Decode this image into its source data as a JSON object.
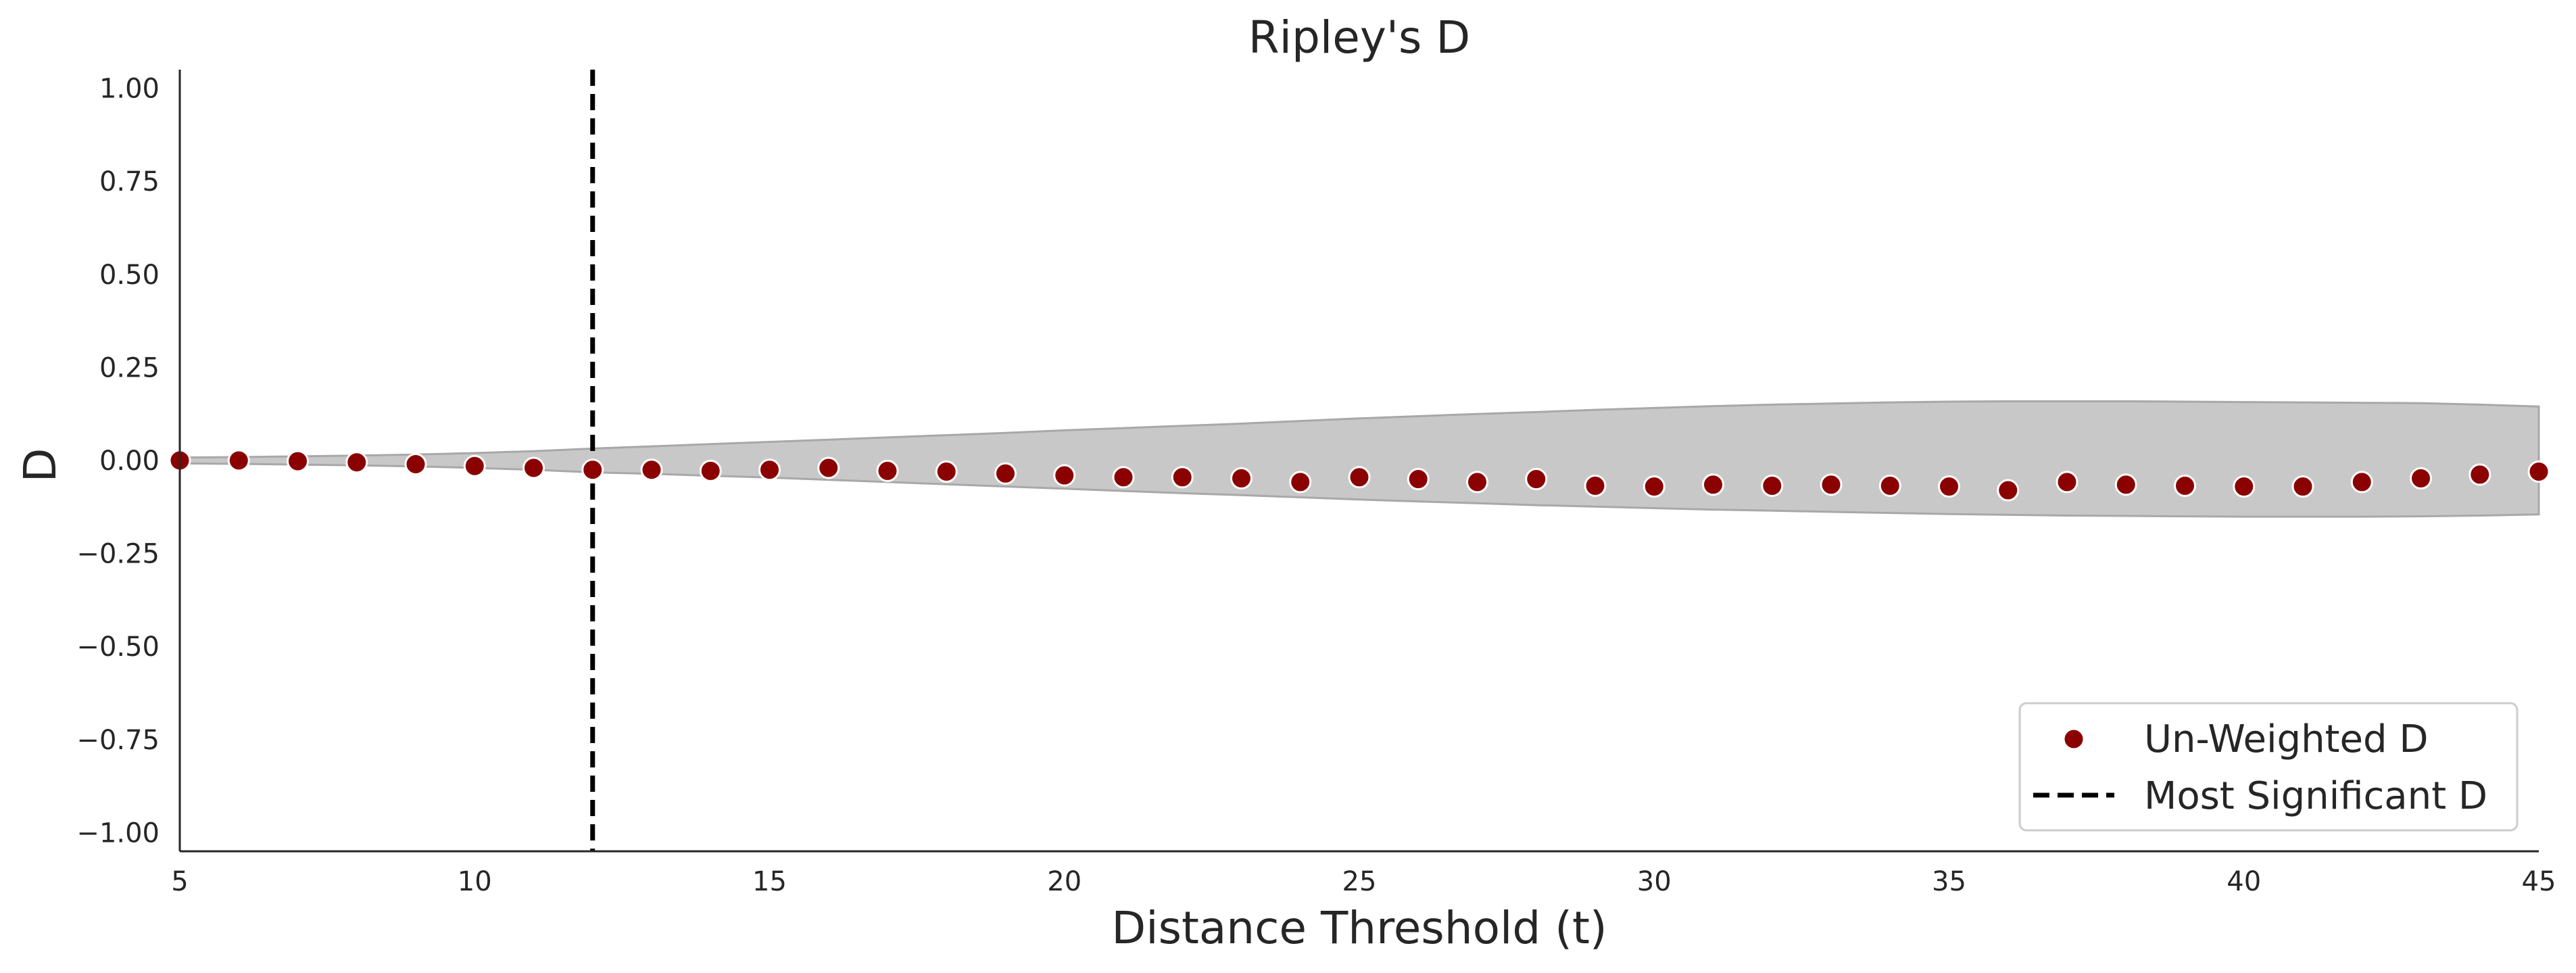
{
  "chart_data": {
    "type": "scatter",
    "title": "Ripley's D",
    "xlabel": "Distance Threshold (t)",
    "ylabel": "D",
    "xlim": [
      5,
      45
    ],
    "ylim": [
      -1.05,
      1.05
    ],
    "x_ticks": [
      5,
      10,
      15,
      20,
      25,
      30,
      35,
      40,
      45
    ],
    "y_ticks": [
      1.0,
      0.75,
      0.5,
      0.25,
      0.0,
      -0.25,
      -0.5,
      -0.75,
      -1.0
    ],
    "y_tick_labels": [
      "1.00",
      "0.75",
      "0.50",
      "0.25",
      "0.00",
      "−0.25",
      "−0.50",
      "−0.75",
      "−1.00"
    ],
    "grid": false,
    "series": [
      {
        "name": "Un-Weighted D",
        "color": "#8b0000",
        "x": [
          5,
          6,
          7,
          8,
          9,
          10,
          11,
          12,
          13,
          14,
          15,
          16,
          17,
          18,
          19,
          20,
          21,
          22,
          23,
          24,
          25,
          26,
          27,
          28,
          29,
          30,
          31,
          32,
          33,
          34,
          35,
          36,
          37,
          38,
          39,
          40,
          41,
          42,
          43,
          44,
          45
        ],
        "y": [
          0.0,
          0.0,
          -0.002,
          -0.005,
          -0.01,
          -0.015,
          -0.02,
          -0.025,
          -0.025,
          -0.028,
          -0.025,
          -0.02,
          -0.028,
          -0.03,
          -0.035,
          -0.04,
          -0.045,
          -0.045,
          -0.048,
          -0.058,
          -0.045,
          -0.05,
          -0.058,
          -0.05,
          -0.068,
          -0.07,
          -0.065,
          -0.068,
          -0.065,
          -0.068,
          -0.07,
          -0.08,
          -0.058,
          -0.065,
          -0.068,
          -0.07,
          -0.07,
          -0.058,
          -0.048,
          -0.038,
          -0.03
        ]
      }
    ],
    "envelope": {
      "color": "#c8c8c8",
      "edge_color": "#a8a8a8",
      "x": [
        5,
        6,
        7,
        8,
        9,
        10,
        11,
        12,
        13,
        14,
        15,
        16,
        17,
        18,
        19,
        20,
        21,
        22,
        23,
        24,
        25,
        26,
        27,
        28,
        29,
        30,
        31,
        32,
        33,
        34,
        35,
        36,
        37,
        38,
        39,
        40,
        41,
        42,
        43,
        44,
        45
      ],
      "upper": [
        0.008,
        0.009,
        0.011,
        0.013,
        0.016,
        0.02,
        0.025,
        0.032,
        0.038,
        0.044,
        0.05,
        0.056,
        0.062,
        0.068,
        0.074,
        0.081,
        0.087,
        0.093,
        0.099,
        0.106,
        0.113,
        0.119,
        0.125,
        0.13,
        0.136,
        0.141,
        0.146,
        0.15,
        0.153,
        0.156,
        0.158,
        0.159,
        0.159,
        0.159,
        0.158,
        0.157,
        0.156,
        0.155,
        0.154,
        0.15,
        0.145
      ],
      "lower": [
        -0.008,
        -0.009,
        -0.011,
        -0.013,
        -0.016,
        -0.02,
        -0.025,
        -0.032,
        -0.036,
        -0.041,
        -0.046,
        -0.052,
        -0.058,
        -0.064,
        -0.07,
        -0.076,
        -0.082,
        -0.088,
        -0.093,
        -0.099,
        -0.105,
        -0.11,
        -0.115,
        -0.12,
        -0.124,
        -0.128,
        -0.132,
        -0.135,
        -0.138,
        -0.141,
        -0.144,
        -0.146,
        -0.148,
        -0.149,
        -0.15,
        -0.151,
        -0.151,
        -0.151,
        -0.15,
        -0.148,
        -0.145
      ]
    },
    "vline": {
      "name": "Most Significant D",
      "x": 12,
      "color": "#000000",
      "style": "dashed"
    },
    "legend": {
      "placement": "lower-right",
      "entries": [
        {
          "label": "Un-Weighted D",
          "marker": "circle",
          "color": "#8b0000"
        },
        {
          "label": "Most Significant D",
          "marker": "dashed-line",
          "color": "#000000"
        }
      ]
    }
  }
}
